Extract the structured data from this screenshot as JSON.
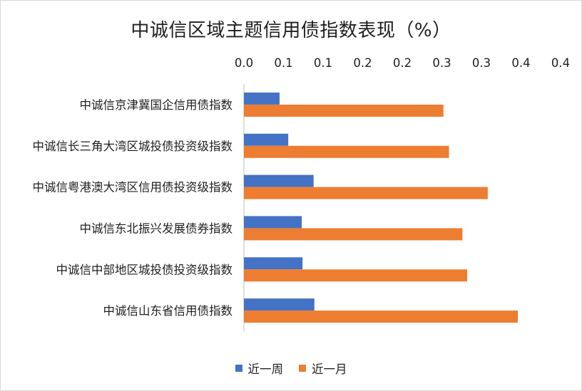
{
  "chart_data": {
    "type": "bar",
    "orientation": "horizontal",
    "title": "中诚信区域主题信用债指数表现（%）",
    "tick_labels": [
      "0.0",
      "0.1",
      "0.1",
      "0.2",
      "0.2",
      "0.3",
      "0.3",
      "0.4",
      "0.4"
    ],
    "xlim": [
      0,
      0.4
    ],
    "categories": [
      "中诚信京津冀国企信用债指数",
      "中诚信长三角大湾区城投债投资级指数",
      "中诚信粤港澳大湾区信用债投资级指数",
      "中诚信东北振兴发展债券指数",
      "中诚信中部地区城投债投资级指数",
      "中诚信山东省信用债指数"
    ],
    "series": [
      {
        "name": "近一周",
        "color": "#4472C4",
        "values": [
          0.045,
          0.056,
          0.088,
          0.073,
          0.074,
          0.089
        ]
      },
      {
        "name": "近一月",
        "color": "#ED7D31",
        "values": [
          0.252,
          0.259,
          0.308,
          0.276,
          0.282,
          0.346
        ]
      }
    ],
    "legend_position": "bottom",
    "grid": false
  }
}
